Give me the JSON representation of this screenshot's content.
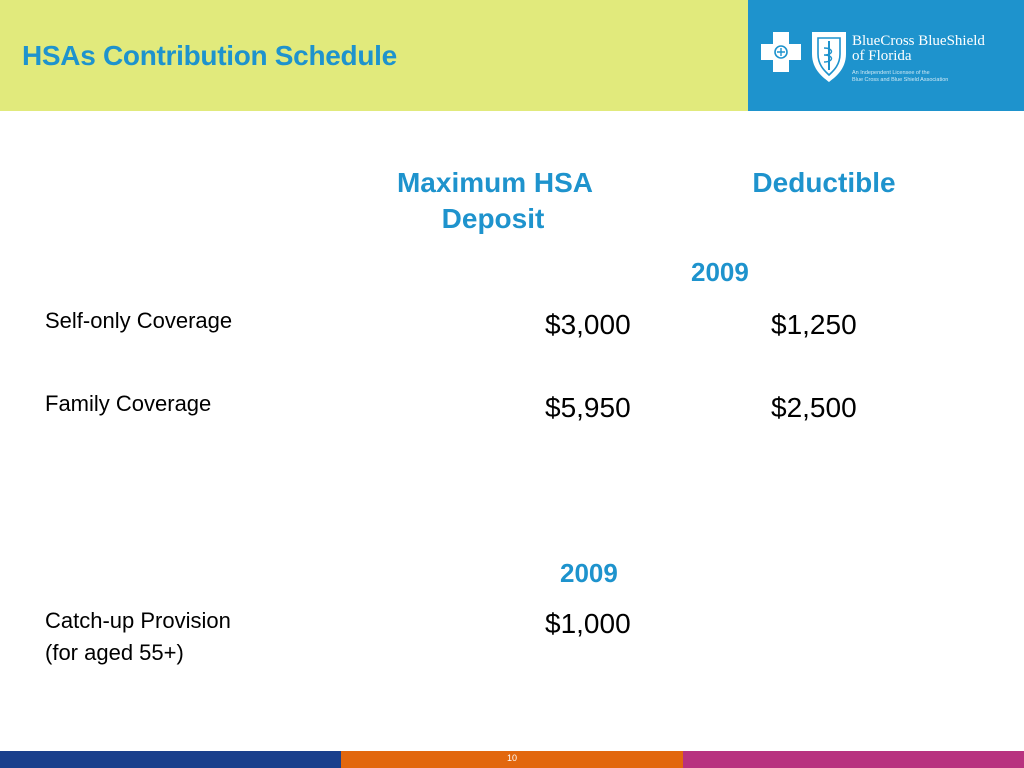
{
  "slide": {
    "title": "HSAs Contribution Schedule",
    "page_number": "10"
  },
  "logo": {
    "name_line1": "BlueCross BlueShield",
    "name_line2": "of Florida",
    "sub_line1": "An Independent Licensee of the",
    "sub_line2": "Blue Cross and Blue Shield Association",
    "icons": [
      "cross-icon",
      "shield-icon"
    ]
  },
  "table": {
    "headers": {
      "max_deposit_line1": "Maximum  HSA",
      "max_deposit_line2": "Deposit",
      "deductible": "Deductible",
      "year_top": "2009",
      "year_catchup": "2009"
    },
    "rows": [
      {
        "label": "Self-only Coverage",
        "max_deposit": "$3,000",
        "deductible": "$1,250"
      },
      {
        "label": "Family Coverage",
        "max_deposit": "$5,950",
        "deductible": "$2,500"
      }
    ],
    "catchup": {
      "label_line1": "Catch-up Provision",
      "label_line2": "(for aged 55+)",
      "value": "$1,000"
    }
  },
  "colors": {
    "header_band": "#e1ea7c",
    "accent_blue": "#1e93cd",
    "footer_navy": "#1a3f8c",
    "footer_orange": "#e2670e",
    "footer_magenta": "#b8327f"
  }
}
